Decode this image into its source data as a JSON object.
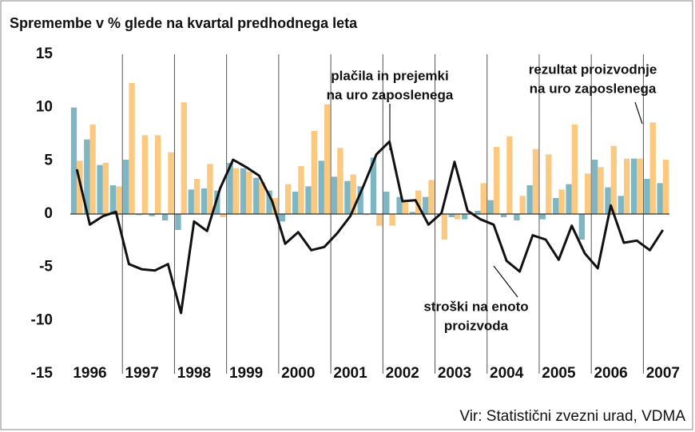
{
  "chart_data": {
    "type": "bar-line",
    "title": "Spremembe v % glede na kvartal predhodnega leta",
    "source": "Vir: Statistični zvezni urad, VDMA",
    "categories": [
      "1996",
      null,
      null,
      null,
      "1997",
      null,
      null,
      null,
      "1998",
      null,
      null,
      null,
      "1999",
      null,
      null,
      null,
      "2000",
      null,
      null,
      null,
      "2001",
      null,
      null,
      null,
      "2002",
      null,
      null,
      null,
      "2003",
      null,
      null,
      null,
      "2004",
      null,
      null,
      null,
      "2005",
      null,
      null,
      null,
      "2006",
      null,
      null,
      null,
      "2007",
      null
    ],
    "series": [
      {
        "kind": "bar",
        "color": "#7fb6c4",
        "values": [
          10,
          7,
          4.6,
          2.7,
          5.1,
          -0.1,
          -0.2,
          -0.6,
          -1.5,
          2.3,
          2.4,
          2.2,
          4.8,
          4.3,
          3.4,
          2.2,
          -0.7,
          2.1,
          2.6,
          5,
          3.5,
          3.1,
          2.6,
          5.3,
          2.1,
          1.6,
          0.2,
          1.6,
          0,
          -0.3,
          -0.5,
          0.3,
          1.3,
          -0.3,
          -0.6,
          2.7,
          -0.5,
          1.5,
          2.8,
          -2.4,
          5.1,
          2.5,
          1.7,
          5.2,
          3.3,
          2.9
        ]
      },
      {
        "kind": "bar",
        "color": "#fbc97f",
        "values": [
          5,
          8.4,
          4.8,
          2.6,
          12.3,
          7.4,
          7.4,
          5.8,
          10.5,
          3.3,
          4.7,
          -0.3,
          4.3,
          4.0,
          3.0,
          1.5,
          2.8,
          4.5,
          7.8,
          10.3,
          6.2,
          3.7,
          -0.1,
          -1.1,
          -1.1,
          1.1,
          2.2,
          3.2,
          -2.4,
          -0.5,
          0.2,
          2.9,
          6.3,
          7.3,
          1.7,
          6.1,
          5.6,
          2.3,
          8.4,
          3.8,
          4.4,
          6.4,
          5.2,
          5.2,
          8.6,
          5.1
        ]
      },
      {
        "kind": "line",
        "color": "#111111",
        "values": [
          4.2,
          -1,
          -0.2,
          0.2,
          -4.7,
          -5.2,
          -5.3,
          -4.7,
          -9.3,
          -0.7,
          -1.6,
          2.4,
          5.1,
          4.4,
          3.6,
          1.2,
          -2.8,
          -1.7,
          -3.4,
          -3.1,
          -1.8,
          -0.2,
          2.6,
          5.6,
          6.8,
          1.2,
          1.3,
          -1,
          0.1,
          4.9,
          0.3,
          -0.5,
          -1,
          -4.4,
          -5.4,
          -2,
          -2.4,
          -4.3,
          -1.1,
          -3.7,
          -5.1,
          0.8,
          -2.7,
          -2.5,
          -3.4,
          -1.5
        ]
      }
    ],
    "annotations": [
      {
        "lines": [
          "plačila in prejemki",
          "na uro zaposlenega"
        ]
      },
      {
        "lines": [
          "rezultat proizvodnje",
          "na uro zaposlenega"
        ]
      },
      {
        "lines": [
          "stroški na enoto",
          "proizvoda"
        ]
      }
    ],
    "ylim": [
      -15,
      15
    ],
    "yticks": [
      -15,
      -10,
      -5,
      0,
      5,
      10,
      15
    ]
  }
}
